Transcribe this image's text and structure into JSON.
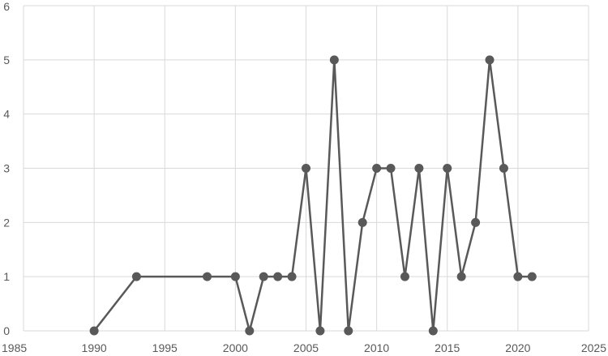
{
  "chart_data": {
    "type": "line",
    "title": "",
    "xlabel": "",
    "ylabel": "",
    "xlim": [
      1985,
      2025
    ],
    "ylim": [
      0,
      6
    ],
    "x_ticks": [
      "1985",
      "1990",
      "1995",
      "2000",
      "2005",
      "2010",
      "2015",
      "2020",
      "2025"
    ],
    "y_ticks": [
      "0",
      "1",
      "2",
      "3",
      "4",
      "5",
      "6"
    ],
    "grid": true,
    "legend": "none",
    "series_color": "#595959",
    "series": [
      {
        "x": [
          1990,
          1993,
          1998,
          2000,
          2001,
          2002,
          2003,
          2004,
          2005,
          2006,
          2007,
          2008,
          2009,
          2010,
          2011,
          2012,
          2013,
          2014,
          2015,
          2016,
          2017,
          2018,
          2019,
          2020,
          2021
        ],
        "y": [
          0,
          1,
          1,
          1,
          0,
          1,
          1,
          1,
          3,
          0,
          5,
          0,
          2,
          3,
          3,
          1,
          3,
          0,
          3,
          1,
          2,
          5,
          3,
          1,
          1
        ]
      }
    ]
  }
}
